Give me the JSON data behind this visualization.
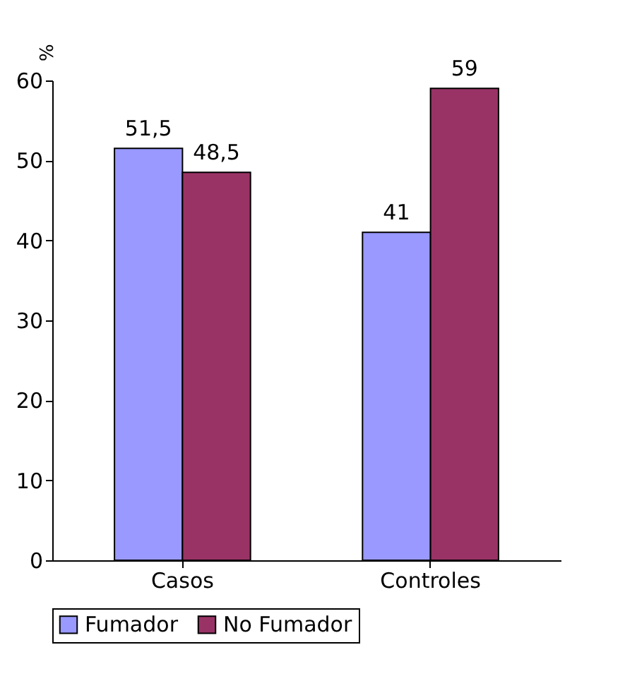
{
  "chart_data": {
    "type": "bar",
    "ylabel": "%",
    "categories": [
      "Casos",
      "Controles"
    ],
    "series": [
      {
        "name": "Fumador",
        "color": "#9999ff",
        "values": [
          51.5,
          41
        ],
        "value_labels": [
          "51,5",
          "41"
        ]
      },
      {
        "name": "No Fumador",
        "color": "#993366",
        "values": [
          48.5,
          59
        ],
        "value_labels": [
          "48,5",
          "59"
        ]
      }
    ],
    "ylim": [
      0,
      60
    ],
    "yticks": [
      0,
      10,
      20,
      30,
      40,
      50,
      60
    ],
    "grid": false,
    "legend": "bottom"
  }
}
